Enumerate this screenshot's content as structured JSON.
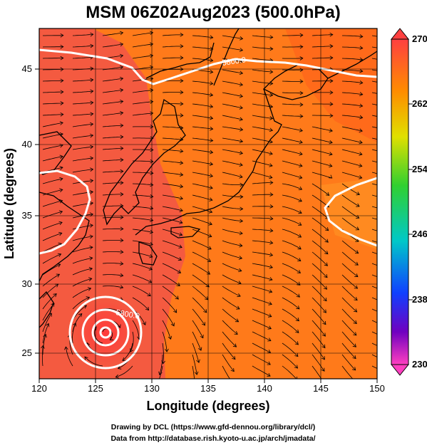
{
  "title": "MSM 06Z02Aug2023 (500.0hPa)",
  "xlabel": "Longitude (degrees)",
  "ylabel": "Latitude  (degrees)",
  "x_ticks": [
    "120",
    "125",
    "130",
    "135",
    "140",
    "145",
    "150"
  ],
  "y_ticks": [
    "25",
    "30",
    "35",
    "40",
    "45"
  ],
  "colorbar_ticks": [
    "270",
    "262",
    "254",
    "246",
    "238",
    "230"
  ],
  "contour_labels": [
    "5800.0",
    "5800.0"
  ],
  "credits": [
    "Drawing by DCL (https://www.gfd-dennou.org/library/dcl/)",
    "Data from http://database.rish.kyoto-u.ac.jp/arch/jmadata/"
  ],
  "colors": {
    "warm_red": "#ff4a30",
    "red": "#f45a40",
    "orange": "#ff7a1a",
    "deep_orange": "#ff6010",
    "contour": "#ffffff",
    "streamline": "#000000"
  },
  "map_data": {
    "type": "filled-contour-with-streamlines",
    "variable": "temperature",
    "level_hPa": 500.0,
    "time": "06Z02Aug2023",
    "lon_range": [
      120,
      150
    ],
    "lat_range": [
      22.5,
      48
    ],
    "colorbar_range": [
      230,
      270
    ],
    "contour_level": 5800.0,
    "typhoon_center": {
      "lon": 126.1,
      "lat": 26.0
    }
  }
}
